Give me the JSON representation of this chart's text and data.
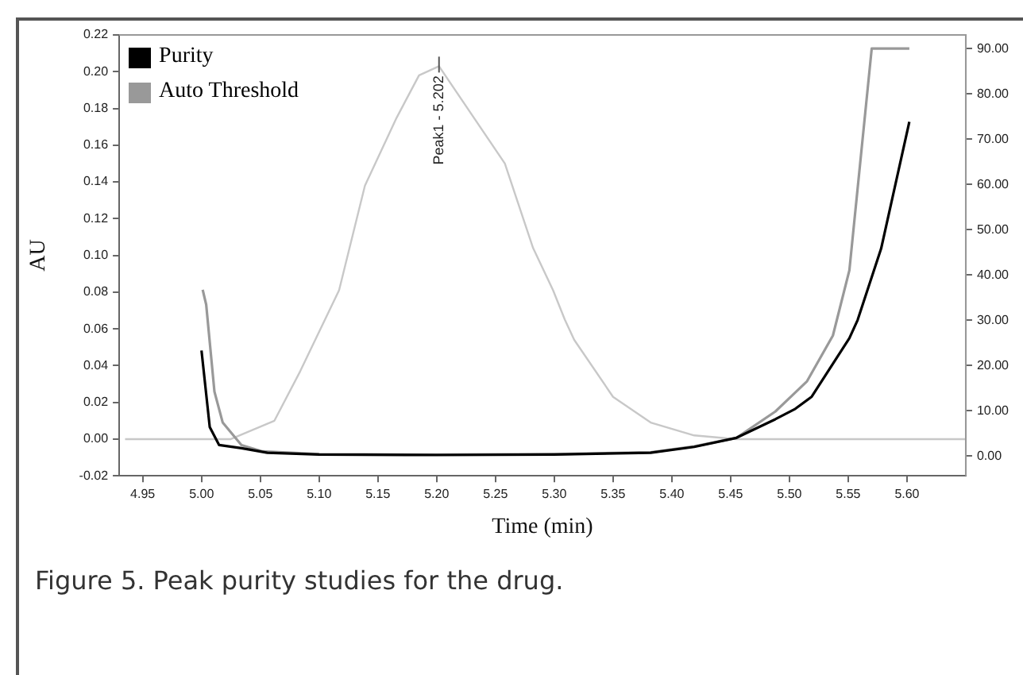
{
  "chart_data": {
    "type": "line",
    "xlabel": "Time (min)",
    "ylabel": "AU",
    "legend": "top left",
    "grid": false,
    "marker": "none",
    "line_style": "solid",
    "xlim": [
      4.93,
      5.65
    ],
    "ylim": [
      -0.02,
      0.22
    ],
    "y2lim": [
      -4.4,
      93
    ],
    "xticks": [
      {
        "value": 4.95,
        "label": "4.95"
      },
      {
        "value": 5,
        "label": "5.00"
      },
      {
        "value": 5.05,
        "label": "5.05"
      },
      {
        "value": 5.1,
        "label": "5.10"
      },
      {
        "value": 5.15,
        "label": "5.15"
      },
      {
        "value": 5.2,
        "label": "5.20"
      },
      {
        "value": 5.25,
        "label": "5.25"
      },
      {
        "value": 5.3,
        "label": "5.30"
      },
      {
        "value": 5.35,
        "label": "5.35"
      },
      {
        "value": 5.4,
        "label": "5.40"
      },
      {
        "value": 5.45,
        "label": "5.45"
      },
      {
        "value": 5.5,
        "label": "5.50"
      },
      {
        "value": 5.55,
        "label": "5.55"
      },
      {
        "value": 5.6,
        "label": "5.60"
      }
    ],
    "yticks": [
      {
        "value": -0.02,
        "label": "-0.02"
      },
      {
        "value": 0,
        "label": "0.00"
      },
      {
        "value": 0.02,
        "label": "0.02"
      },
      {
        "value": 0.04,
        "label": "0.04"
      },
      {
        "value": 0.06,
        "label": "0.06"
      },
      {
        "value": 0.08,
        "label": "0.08"
      },
      {
        "value": 0.1,
        "label": "0.10"
      },
      {
        "value": 0.12,
        "label": "0.12"
      },
      {
        "value": 0.14,
        "label": "0.14"
      },
      {
        "value": 0.16,
        "label": "0.16"
      },
      {
        "value": 0.18,
        "label": "0.18"
      },
      {
        "value": 0.2,
        "label": "0.20"
      },
      {
        "value": 0.22,
        "label": "0.22"
      }
    ],
    "y2ticks": [
      {
        "value": 0,
        "label": "0.00"
      },
      {
        "value": 10,
        "label": "10.00"
      },
      {
        "value": 20,
        "label": "20.00"
      },
      {
        "value": 30,
        "label": "30.00"
      },
      {
        "value": 40,
        "label": "40.00"
      },
      {
        "value": 50,
        "label": "50.00"
      },
      {
        "value": 60,
        "label": "60.00"
      },
      {
        "value": 70,
        "label": "70.00"
      },
      {
        "value": 80,
        "label": "80.00"
      },
      {
        "value": 90,
        "label": "90.00"
      }
    ],
    "series": [
      {
        "name": "Purity",
        "color": "#000000",
        "axis": "y2",
        "x": [
          5.0,
          5.007,
          5.015,
          5.034,
          5.056,
          5.1,
          5.2,
          5.3,
          5.382,
          5.419,
          5.455,
          5.488,
          5.505,
          5.519,
          5.551,
          5.558,
          5.578,
          5.602
        ],
        "values": [
          23.3,
          6.4,
          2.4,
          1.7,
          0.7,
          0.3,
          0.2,
          0.3,
          0.7,
          2.0,
          4.0,
          8.1,
          10.4,
          13.1,
          26,
          30,
          45.8,
          73.8
        ]
      },
      {
        "name": "Auto Threshold",
        "color": "#999999",
        "axis": "y2",
        "x": [
          5.001,
          5.004,
          5.011,
          5.018,
          5.034,
          5.052,
          5.1,
          5.2,
          5.3,
          5.382,
          5.419,
          5.455,
          5.488,
          5.515,
          5.537,
          5.551,
          5.57,
          5.602
        ],
        "values": [
          36.7,
          33.4,
          14.2,
          7.4,
          2.4,
          1.0,
          0.4,
          0.3,
          0.4,
          0.8,
          2.1,
          4.0,
          9.8,
          16.5,
          26.6,
          41,
          90,
          90
        ]
      },
      {
        "color": "#c8c8c8",
        "x": [
          4.935,
          5.025,
          5.062,
          5.084,
          5.117,
          5.139,
          5.166,
          5.185,
          5.202,
          5.258,
          5.282,
          5.299,
          5.309,
          5.317,
          5.35,
          5.382,
          5.419,
          5.455,
          5.65
        ],
        "values": [
          0,
          0,
          0.01,
          0.037,
          0.081,
          0.138,
          0.175,
          0.198,
          0.203,
          0.15,
          0.104,
          0.081,
          0.065,
          0.054,
          0.023,
          0.009,
          0.002,
          0,
          0
        ]
      }
    ],
    "annotations": [
      {
        "text": "Peak1 - 5.202",
        "x": 5.202,
        "y": 0.203
      },
      "Figure 5. Peak purity studies for the drug."
    ]
  }
}
